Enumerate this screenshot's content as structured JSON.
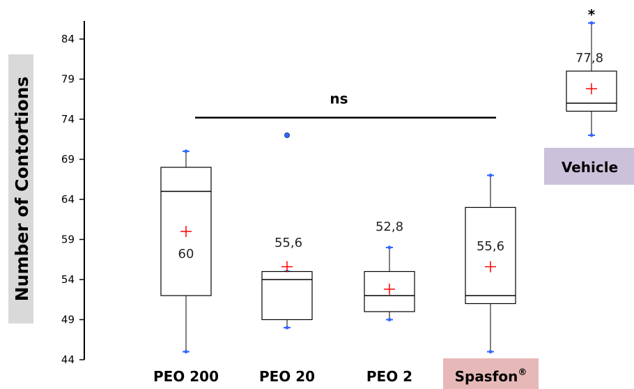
{
  "chart_data": {
    "type": "box",
    "ylabel": "Number of Contortions",
    "ylim": [
      44,
      86
    ],
    "yticks": [
      44,
      49,
      54,
      59,
      64,
      69,
      74,
      79,
      84
    ],
    "categories": [
      "PEO 200",
      "PEO 20",
      "PEO 2",
      "Spasfon",
      "Vehicle"
    ],
    "category_superscripts": [
      "",
      "",
      "",
      "®",
      ""
    ],
    "category_backgrounds": [
      "",
      "",
      "",
      "#e6b9b8",
      "#ccc1da"
    ],
    "boxes": [
      {
        "category": "PEO 200",
        "whisker_low": 45,
        "q1": 52,
        "median": 65,
        "q3": 68,
        "whisker_high": 70,
        "mean": 60,
        "mean_label": "60",
        "outliers": []
      },
      {
        "category": "PEO 20",
        "whisker_low": 48,
        "q1": 49,
        "median": 54,
        "q3": 55,
        "whisker_high": 55,
        "mean": 55.6,
        "mean_label": "55,6",
        "outliers": [
          72
        ]
      },
      {
        "category": "PEO 2",
        "whisker_low": 49,
        "q1": 50,
        "median": 52,
        "q3": 55,
        "whisker_high": 58,
        "mean": 52.8,
        "mean_label": "52,8",
        "outliers": []
      },
      {
        "category": "Spasfon",
        "whisker_low": 45,
        "q1": 51,
        "median": 52,
        "q3": 63,
        "whisker_high": 67,
        "mean": 55.6,
        "mean_label": "55,6",
        "outliers": []
      },
      {
        "category": "Vehicle",
        "whisker_low": 72,
        "q1": 75,
        "median": 76,
        "q3": 80,
        "whisker_high": 86,
        "mean": 77.8,
        "mean_label": "77,8",
        "outliers": []
      }
    ],
    "annotations": [
      {
        "text": "ns",
        "spans": [
          "PEO 200",
          "Spasfon"
        ],
        "level": 74.2
      },
      {
        "text": "*",
        "over": "Vehicle"
      }
    ],
    "colors": {
      "mean_marker": "#ff0000",
      "whisker_end": "#3366ff",
      "box": "#000000"
    }
  }
}
